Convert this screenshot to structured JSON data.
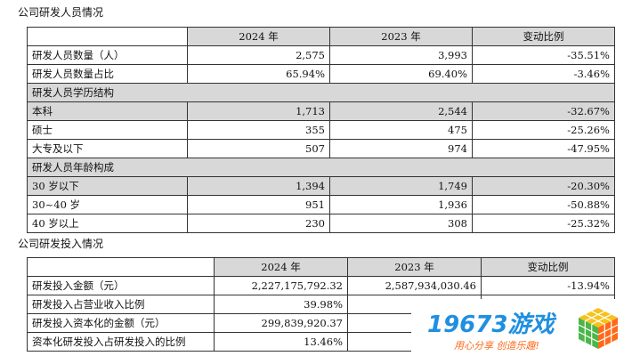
{
  "table1": {
    "title": "公司研发人员情况",
    "headers": [
      "",
      "2024 年",
      "2023 年",
      "变动比例"
    ],
    "rows": [
      {
        "label": "研发人员数量（人）",
        "y2024": "2,575",
        "y2023": "3,993",
        "change": "-35.51%",
        "shaded": false
      },
      {
        "label": "研发人员数量占比",
        "y2024": "65.94%",
        "y2023": "69.40%",
        "change": "-3.46%",
        "shaded": false
      }
    ],
    "group_edu": "研发人员学历结构",
    "edu_rows": [
      {
        "label": "本科",
        "y2024": "1,713",
        "y2023": "2,544",
        "change": "-32.67%",
        "shaded": true
      },
      {
        "label": "硕士",
        "y2024": "355",
        "y2023": "475",
        "change": "-25.26%",
        "shaded": false
      },
      {
        "label": "大专及以下",
        "y2024": "507",
        "y2023": "974",
        "change": "-47.95%",
        "shaded": false
      }
    ],
    "group_age": "研发人员年龄构成",
    "age_rows": [
      {
        "label": "30 岁以下",
        "y2024": "1,394",
        "y2023": "1,749",
        "change": "-20.30%",
        "shaded": true
      },
      {
        "label": "30~40 岁",
        "y2024": "951",
        "y2023": "1,936",
        "change": "-50.88%",
        "shaded": false
      },
      {
        "label": "40 岁以上",
        "y2024": "230",
        "y2023": "308",
        "change": "-25.32%",
        "shaded": false
      }
    ]
  },
  "table2": {
    "title": "公司研发投入情况",
    "headers": [
      "",
      "2024 年",
      "2023 年",
      "变动比例"
    ],
    "rows": [
      {
        "label": "研发投入金额（元）",
        "y2024": "2,227,175,792.32",
        "y2023": "2,587,934,030.46",
        "change": "-13.94%"
      },
      {
        "label": "研发投入占营业收入比例",
        "y2024": "39.98%",
        "y2023": "",
        "change": ""
      },
      {
        "label": "研发投入资本化的金额（元）",
        "y2024": "299,839,920.37",
        "y2023": "393,0",
        "change": ""
      },
      {
        "label": "资本化研发投入占研发投入的比例",
        "y2024": "13.46%",
        "y2023": "",
        "change": ""
      }
    ]
  },
  "watermark": {
    "title": "19673游戏",
    "subtitle": "用心分享  创造乐趣!",
    "colors": {
      "blue": "#1f8fe0",
      "orange": "#ff6a1a",
      "green": "#4cb648",
      "yellow": "#f6c21c"
    }
  }
}
